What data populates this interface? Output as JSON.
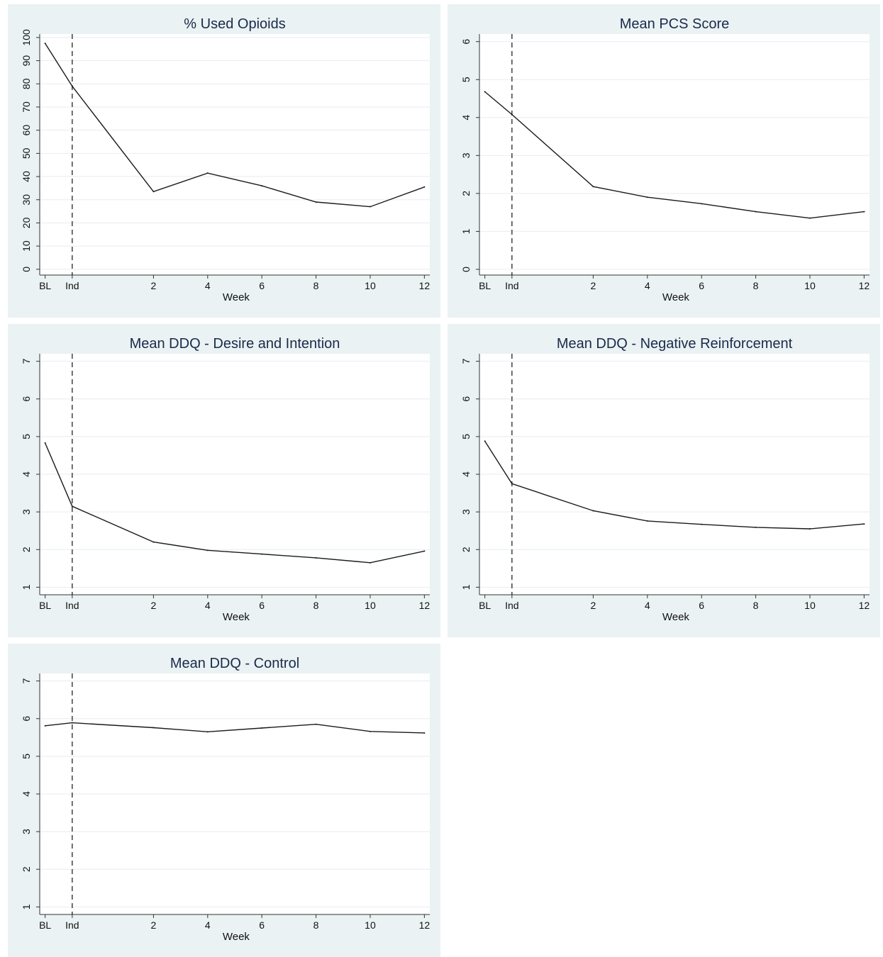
{
  "chart_data": [
    {
      "type": "line",
      "title": "% Used Opioids",
      "xlabel": "Week",
      "ylabel": "",
      "categories": [
        "BL",
        "Ind",
        "2",
        "4",
        "6",
        "8",
        "10",
        "12"
      ],
      "x": [
        -2,
        -1,
        2,
        4,
        6,
        8,
        10,
        12
      ],
      "values": [
        97.5,
        79,
        33.5,
        41.5,
        36,
        29,
        27,
        35.5
      ],
      "yticks": [
        0,
        10,
        20,
        30,
        40,
        50,
        60,
        70,
        80,
        90,
        100
      ],
      "ylim": [
        -2.5,
        101.5
      ],
      "xlim": [
        -2.2,
        12.2
      ],
      "vline_at": "Ind",
      "grid": true
    },
    {
      "type": "line",
      "title": "Mean PCS Score",
      "xlabel": "Week",
      "ylabel": "",
      "categories": [
        "BL",
        "Ind",
        "2",
        "4",
        "6",
        "8",
        "10",
        "12"
      ],
      "x": [
        -2,
        -1,
        2,
        4,
        6,
        8,
        10,
        12
      ],
      "values": [
        4.68,
        4.08,
        2.18,
        1.9,
        1.73,
        1.52,
        1.35,
        1.52
      ],
      "yticks": [
        0,
        1,
        2,
        3,
        4,
        5,
        6
      ],
      "ylim": [
        -0.15,
        6.2
      ],
      "xlim": [
        -2.2,
        12.2
      ],
      "vline_at": "Ind",
      "grid": true
    },
    {
      "type": "line",
      "title": "Mean DDQ - Desire and Intention",
      "xlabel": "Week",
      "ylabel": "",
      "categories": [
        "BL",
        "Ind",
        "2",
        "4",
        "6",
        "8",
        "10",
        "12"
      ],
      "x": [
        -2,
        -1,
        2,
        4,
        6,
        8,
        10,
        12
      ],
      "values": [
        4.83,
        3.15,
        2.2,
        1.98,
        1.88,
        1.78,
        1.65,
        1.96
      ],
      "yticks": [
        1,
        2,
        3,
        4,
        5,
        6,
        7
      ],
      "ylim": [
        0.8,
        7.2
      ],
      "xlim": [
        -2.2,
        12.2
      ],
      "vline_at": "Ind",
      "grid": true
    },
    {
      "type": "line",
      "title": "Mean DDQ - Negative Reinforcement",
      "xlabel": "Week",
      "ylabel": "",
      "categories": [
        "BL",
        "Ind",
        "2",
        "4",
        "6",
        "8",
        "10",
        "12"
      ],
      "x": [
        -2,
        -1,
        2,
        4,
        6,
        8,
        10,
        12
      ],
      "values": [
        4.88,
        3.75,
        3.03,
        2.76,
        2.67,
        2.59,
        2.55,
        2.68
      ],
      "yticks": [
        1,
        2,
        3,
        4,
        5,
        6,
        7
      ],
      "ylim": [
        0.8,
        7.2
      ],
      "xlim": [
        -2.2,
        12.2
      ],
      "vline_at": "Ind",
      "grid": true
    },
    {
      "type": "line",
      "title": "Mean DDQ - Control",
      "xlabel": "Week",
      "ylabel": "",
      "categories": [
        "BL",
        "Ind",
        "2",
        "4",
        "6",
        "8",
        "10",
        "12"
      ],
      "x": [
        -2,
        -1,
        2,
        4,
        6,
        8,
        10,
        12
      ],
      "values": [
        5.81,
        5.89,
        5.76,
        5.65,
        5.75,
        5.85,
        5.66,
        5.62
      ],
      "yticks": [
        1,
        2,
        3,
        4,
        5,
        6,
        7
      ],
      "ylim": [
        0.8,
        7.2
      ],
      "xlim": [
        -2.2,
        12.2
      ],
      "vline_at": "Ind",
      "grid": true
    }
  ]
}
